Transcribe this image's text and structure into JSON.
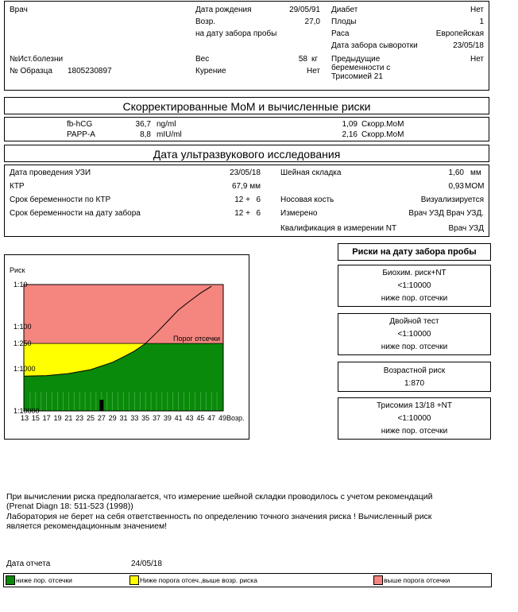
{
  "patient": {
    "doctor_label": "Врач",
    "history_label": "№Ист.болезни",
    "sample_label": "№ Образца",
    "sample_value": "1805230897",
    "dob_label": "Дата рождения",
    "dob_value": "29/05/91",
    "age_label": "Возр.",
    "age_value": "27,0",
    "age_note": "на дату забора пробы",
    "weight_label": "Вес",
    "weight_value": "58",
    "weight_unit": "кг",
    "smoking_label": "Курение",
    "smoking_value": "Нет",
    "diabetes_label": "Диабет",
    "diabetes_value": "Нет",
    "fetus_label": "Плоды",
    "fetus_value": "1",
    "race_label": "Раса",
    "race_value": "Европейская",
    "serum_date_label": "Дата забора сыворотки",
    "serum_date_value": "23/05/18",
    "prev_label_1": "Предыдущие",
    "prev_label_2": "беременности с",
    "prev_label_3": "Трисомией 21",
    "prev_value": "Нет"
  },
  "mom_section": {
    "title": "Скорректированные MoM и вычисленные риски",
    "rows": [
      {
        "name": "fb-hCG",
        "value": "36,7",
        "unit": "ng/ml",
        "mom": "1,09",
        "mom_label": "Скорр.MoM"
      },
      {
        "name": "PAPP-A",
        "value": "8,8",
        "unit": "mIU/ml",
        "mom": "2,16",
        "mom_label": "Скорр.MoM"
      }
    ]
  },
  "us_section": {
    "title": "Дата ультразвукового исследования",
    "date_label": "Дата проведения УЗИ",
    "date_value": "23/05/18",
    "crl_label": "КТР",
    "crl_value": "67,9 мм",
    "ga_crl_label": "Срок беременности по КТР",
    "ga_crl_w": "12 +",
    "ga_crl_d": "6",
    "ga_sample_label": "Срок беременности на дату забора",
    "ga_sample_w": "12 +",
    "ga_sample_d": "6",
    "nt_label": "Шейная складка",
    "nt_value": "1,60",
    "nt_unit": "мм",
    "nt_mom": "0,93",
    "nt_mom_unit": "MOM",
    "nasal_label": "Носовая кость",
    "nasal_value": "Визуализируется",
    "measured_label": "Измерено",
    "measured_value": "Врач УЗД Врач УЗД.",
    "qual_label": "Квалификация в измерении NT",
    "qual_value": "Врач УЗД"
  },
  "chart": {
    "risk_label": "Риск",
    "cutoff_label": "Порог отсечки",
    "age_axis_label": "Возр.",
    "y_ticks": [
      "1:10",
      "1:100",
      "1:250",
      "1:1000",
      "1:10000"
    ],
    "x_ticks": [
      "13",
      "15",
      "17",
      "19",
      "21",
      "23",
      "25",
      "27",
      "29",
      "31",
      "33",
      "35",
      "37",
      "39",
      "41",
      "43",
      "45",
      "47",
      "49"
    ],
    "colors": {
      "red": "#f4857f",
      "yellow": "#ffff00",
      "green": "#0a8a0a"
    }
  },
  "chart_data": {
    "type": "area",
    "title": "",
    "xlabel": "Возр.",
    "ylabel": "Риск",
    "x_range": [
      13,
      49
    ],
    "y_ticks": [
      "1:10",
      "1:100",
      "1:250",
      "1:1000",
      "1:10000"
    ],
    "cutoff": "1:250",
    "series": [
      {
        "name": "",
        "x": [
          13,
          17,
          21,
          25,
          29,
          31,
          33,
          35,
          37,
          39,
          41,
          43,
          45,
          47
        ],
        "y_denominator": [
          1500,
          1450,
          1300,
          1050,
          700,
          520,
          380,
          250,
          140,
          75,
          40,
          25,
          16,
          11
        ]
      }
    ],
    "patient_age": 27,
    "patient_risk": "<1:10000"
  },
  "risks": {
    "title": "Риски на дату забора пробы",
    "panels": [
      {
        "name": "Биохим. риск+NT",
        "value": "<1:10000",
        "note": "ниже пор. отсечки"
      },
      {
        "name": "Двойной тест",
        "value": "<1:10000",
        "note": "ниже пор. отсечки"
      },
      {
        "name": "Возрастной риск",
        "value": "1:870",
        "note": ""
      },
      {
        "name": "Трисомия 13/18 +NT",
        "value": "<1:10000",
        "note": "ниже пор. отсечки"
      }
    ]
  },
  "notes": {
    "line1": "При вычислении риска предполагается, что измерение шейной складки проводилось с учетом рекомендаций",
    "line2": "(Prenat Diagn 18: 511-523 (1998))",
    "line3": "Лаборатория не берет на себя ответственность по определению точного значения риска ! Вычисленный риск",
    "line4": "является рекомендационным значением!"
  },
  "report": {
    "date_label": "Дата отчета",
    "date_value": "24/05/18"
  },
  "legend": {
    "green": "ниже пор. отсечки",
    "yellow": "Ниже порога отсеч.,выше возр. риска",
    "red": "выше порога отсечки"
  }
}
